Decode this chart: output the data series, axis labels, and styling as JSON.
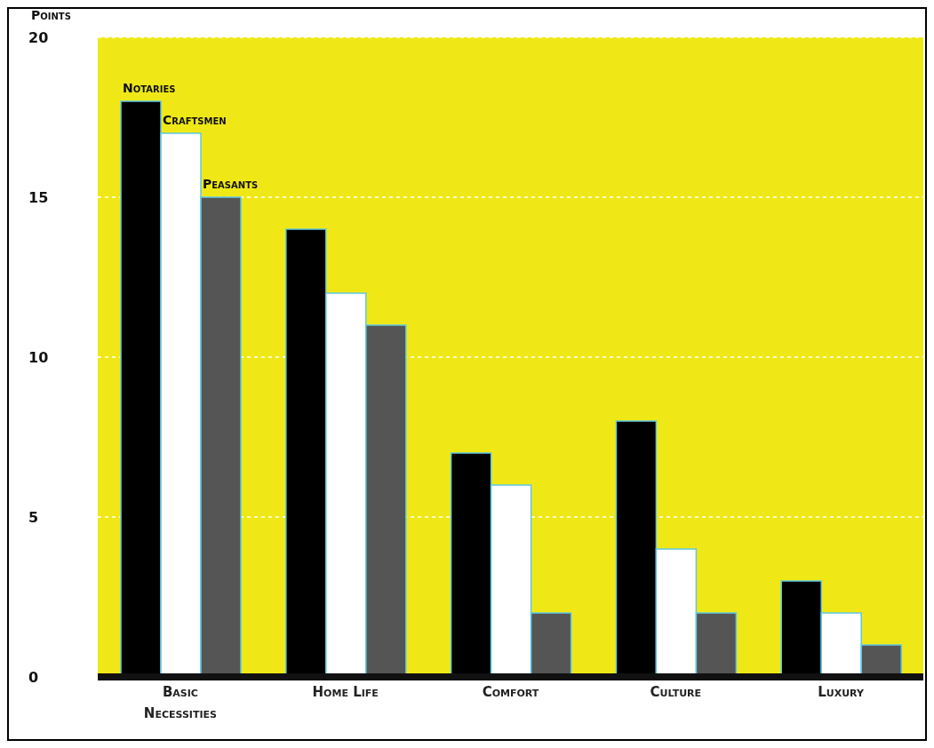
{
  "chart_data": {
    "type": "bar",
    "ylabel": "Points",
    "categories": [
      "Basic Necessities",
      "Home Life",
      "Comfort",
      "Culture",
      "Luxury"
    ],
    "series": [
      {
        "name": "Notaries",
        "color": "#000000",
        "values": [
          18,
          14,
          7,
          8,
          3
        ]
      },
      {
        "name": "Craftsmen",
        "color": "#ffffff",
        "values": [
          17,
          12,
          6,
          4,
          2
        ]
      },
      {
        "name": "Peasants",
        "color": "#555555",
        "values": [
          15,
          11,
          2,
          2,
          1
        ]
      }
    ],
    "ylim": [
      0,
      20
    ],
    "yticks": [
      0,
      5,
      10,
      15,
      20
    ],
    "grid": "y"
  }
}
